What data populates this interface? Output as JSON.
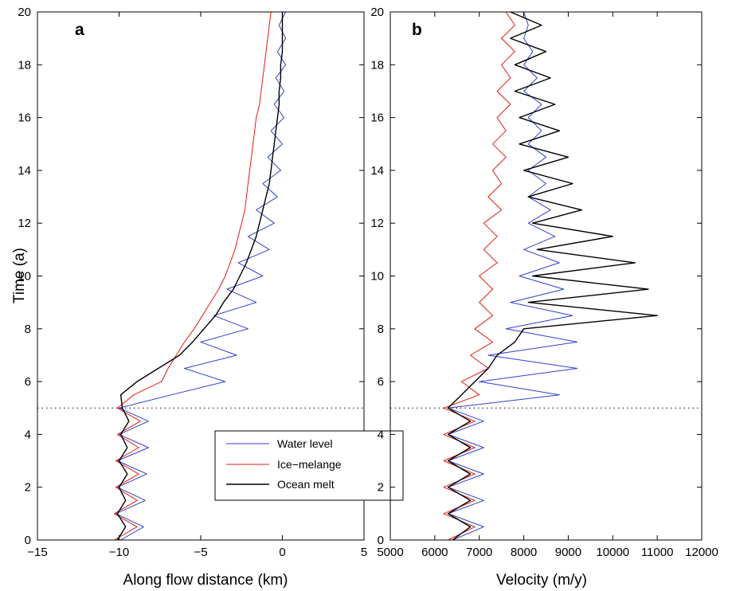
{
  "colors": {
    "water": "#2f3fd0",
    "ice": "#e01b10",
    "ocean": "#000000"
  },
  "chart_data": [
    {
      "type": "line",
      "panel_label": "a",
      "xlabel": "Along flow distance (km)",
      "ylabel": "Time (a)",
      "xlim": [
        -15,
        5
      ],
      "ylim": [
        0,
        20
      ],
      "xticks": [
        -15,
        -10,
        -5,
        0,
        5
      ],
      "yticks": [
        0,
        2,
        4,
        6,
        8,
        10,
        12,
        14,
        16,
        18,
        20
      ],
      "hline": 5,
      "legend": {
        "position": "lower-right",
        "entries": [
          "Water level",
          "Ice−melange",
          "Ocean melt"
        ]
      },
      "series": [
        {
          "name": "Water level",
          "color": "water",
          "y": [
            0,
            0.5,
            1,
            1.5,
            2,
            2.5,
            3,
            3.5,
            4,
            4.5,
            5,
            5.5,
            6,
            6.5,
            7,
            7.5,
            8,
            8.5,
            9,
            9.5,
            10,
            10.5,
            11,
            11.5,
            12,
            12.5,
            13,
            13.5,
            14,
            14.5,
            15,
            15.5,
            16,
            16.5,
            17,
            17.5,
            18,
            18.5,
            19,
            19.5,
            20
          ],
          "x": [
            -9.9,
            -8.5,
            -10.2,
            -8.4,
            -10.1,
            -8.3,
            -10.1,
            -8.2,
            -10.0,
            -8.2,
            -10.0,
            -6.8,
            -3.5,
            -6.0,
            -2.8,
            -5.0,
            -2.1,
            -4.2,
            -1.6,
            -3.4,
            -1.2,
            -2.7,
            -0.8,
            -2.1,
            -0.5,
            -1.6,
            -0.3,
            -1.2,
            -0.1,
            -0.9,
            0.0,
            -0.7,
            0.1,
            -0.5,
            0.1,
            -0.4,
            0.2,
            -0.3,
            0.2,
            -0.2,
            0.2
          ]
        },
        {
          "name": "Ice−melange",
          "color": "ice",
          "y": [
            0,
            0.5,
            1,
            1.5,
            2,
            2.5,
            3,
            3.5,
            4,
            4.5,
            5,
            5.5,
            6,
            6.5,
            7,
            7.5,
            8,
            8.5,
            9,
            9.5,
            10,
            10.5,
            11,
            11.5,
            12,
            12.5,
            13,
            13.5,
            14,
            14.5,
            15,
            15.5,
            16,
            16.5,
            17,
            17.5,
            18,
            18.5,
            19,
            19.5,
            20
          ],
          "x": [
            -10.3,
            -8.9,
            -10.3,
            -8.9,
            -10.2,
            -8.8,
            -10.2,
            -8.8,
            -10.1,
            -8.7,
            -10.1,
            -9.1,
            -7.4,
            -7.0,
            -6.5,
            -6.0,
            -5.4,
            -4.9,
            -4.4,
            -3.9,
            -3.5,
            -3.2,
            -2.9,
            -2.7,
            -2.5,
            -2.3,
            -2.2,
            -2.1,
            -2.0,
            -1.9,
            -1.8,
            -1.7,
            -1.6,
            -1.4,
            -1.3,
            -1.2,
            -1.1,
            -1.0,
            -0.9,
            -0.8,
            -0.7
          ]
        },
        {
          "name": "Ocean melt",
          "color": "ocean",
          "y": [
            0,
            0.5,
            1,
            1.5,
            2,
            2.5,
            3,
            3.5,
            4,
            4.5,
            5,
            5.5,
            6,
            6.5,
            7,
            7.5,
            8,
            8.5,
            9,
            9.5,
            10,
            10.5,
            11,
            11.5,
            12,
            12.5,
            13,
            13.5,
            14,
            14.5,
            15,
            15.5,
            16,
            16.5,
            17,
            17.5,
            18,
            18.5,
            19,
            19.5,
            20
          ],
          "x": [
            -10.1,
            -9.6,
            -10.1,
            -9.6,
            -10.0,
            -9.5,
            -10.0,
            -9.5,
            -9.9,
            -9.4,
            -9.8,
            -9.9,
            -8.9,
            -7.6,
            -6.3,
            -5.5,
            -4.8,
            -4.1,
            -3.6,
            -3.0,
            -2.6,
            -2.2,
            -1.9,
            -1.6,
            -1.4,
            -1.2,
            -1.0,
            -0.8,
            -0.7,
            -0.6,
            -0.5,
            -0.4,
            -0.3,
            -0.2,
            -0.2,
            -0.1,
            -0.1,
            0.0,
            0.0,
            0.0,
            0.0
          ]
        }
      ]
    },
    {
      "type": "line",
      "panel_label": "b",
      "xlabel": "Velocity (m/y)",
      "ylabel": "",
      "xlim": [
        5000,
        12000
      ],
      "ylim": [
        0,
        20
      ],
      "xticks": [
        5000,
        6000,
        7000,
        8000,
        9000,
        10000,
        11000,
        12000
      ],
      "yticks": [
        0,
        2,
        4,
        6,
        8,
        10,
        12,
        14,
        16,
        18,
        20
      ],
      "hline": 5,
      "series": [
        {
          "name": "Water level",
          "color": "water",
          "y": [
            0,
            0.5,
            1,
            1.5,
            2,
            2.5,
            3,
            3.5,
            4,
            4.5,
            5,
            5.5,
            6,
            6.5,
            7,
            7.5,
            8,
            8.5,
            9,
            9.5,
            10,
            10.5,
            11,
            11.5,
            12,
            12.5,
            13,
            13.5,
            14,
            14.5,
            15,
            15.5,
            16,
            16.5,
            17,
            17.5,
            18,
            18.5,
            19,
            19.5,
            20
          ],
          "x": [
            6400,
            7100,
            6300,
            7100,
            6300,
            7100,
            6300,
            7100,
            6300,
            7100,
            6300,
            8800,
            7000,
            9200,
            7200,
            9200,
            7600,
            9100,
            7700,
            8900,
            7900,
            8800,
            8000,
            8700,
            8100,
            8600,
            8100,
            8500,
            8100,
            8500,
            8100,
            8400,
            8100,
            8400,
            8000,
            8300,
            8000,
            8200,
            8000,
            8100,
            8000
          ]
        },
        {
          "name": "Ice−melange",
          "color": "ice",
          "y": [
            0,
            0.5,
            1,
            1.5,
            2,
            2.5,
            3,
            3.5,
            4,
            4.5,
            5,
            5.5,
            6,
            6.5,
            7,
            7.5,
            8,
            8.5,
            9,
            9.5,
            10,
            10.5,
            11,
            11.5,
            12,
            12.5,
            13,
            13.5,
            14,
            14.5,
            15,
            15.5,
            16,
            16.5,
            17,
            17.5,
            18,
            18.5,
            19,
            19.5,
            20
          ],
          "x": [
            6300,
            6900,
            6200,
            6900,
            6200,
            6900,
            6200,
            6900,
            6200,
            6900,
            6200,
            7000,
            6600,
            7200,
            6800,
            7300,
            6900,
            7300,
            7000,
            7300,
            7000,
            7400,
            7100,
            7400,
            7100,
            7500,
            7200,
            7500,
            7300,
            7600,
            7300,
            7600,
            7400,
            7700,
            7400,
            7700,
            7500,
            7800,
            7500,
            7800,
            7600
          ]
        },
        {
          "name": "Ocean melt",
          "color": "ocean",
          "y": [
            0,
            0.5,
            1,
            1.5,
            2,
            2.5,
            3,
            3.5,
            4,
            4.5,
            5,
            5.5,
            6,
            6.5,
            7,
            7.5,
            8,
            8.5,
            9,
            9.5,
            10,
            10.5,
            11,
            11.5,
            12,
            12.5,
            13,
            13.5,
            14,
            14.5,
            15,
            15.5,
            16,
            16.5,
            17,
            17.5,
            18,
            18.5,
            19,
            19.5,
            20
          ],
          "x": [
            6400,
            6800,
            6300,
            6800,
            6300,
            6800,
            6300,
            6800,
            6300,
            6800,
            6300,
            6600,
            6900,
            7200,
            7400,
            7800,
            8000,
            11000,
            8100,
            10800,
            8200,
            10500,
            8300,
            10000,
            8200,
            9300,
            8100,
            9100,
            8000,
            9000,
            7900,
            8800,
            7900,
            8700,
            7800,
            8600,
            7800,
            8500,
            7700,
            8400,
            7700
          ]
        }
      ]
    }
  ]
}
